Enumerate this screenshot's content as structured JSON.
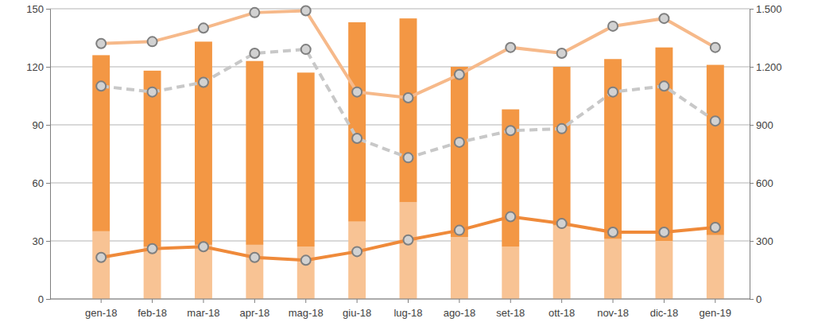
{
  "chart_data": {
    "type": "bar",
    "stacked": true,
    "grid": true,
    "categories": [
      "gen-18",
      "feb-18",
      "mar-18",
      "apr-18",
      "mag-18",
      "giu-18",
      "lug-18",
      "ago-18",
      "set-18",
      "ott-18",
      "nov-18",
      "dic-18",
      "gen-19"
    ],
    "ylim": [
      0,
      150
    ],
    "yticks": [
      0,
      30,
      60,
      90,
      120,
      150
    ],
    "y2lim": [
      0,
      1500
    ],
    "y2ticks": [
      0,
      300,
      600,
      900,
      {
        "value": 1200,
        "label": "1.200"
      },
      {
        "value": 1500,
        "label": "1.500"
      }
    ],
    "series": [
      {
        "type": "bar",
        "color": "#f8c394",
        "values": [
          35,
          27,
          28,
          28,
          27,
          40,
          50,
          32,
          27,
          38,
          31,
          30,
          33
        ]
      },
      {
        "type": "bar",
        "color": "#f39744",
        "values": [
          91,
          91,
          105,
          95,
          90,
          103,
          95,
          88,
          71,
          82,
          93,
          100,
          88
        ]
      },
      {
        "type": "line",
        "axis": "y2",
        "color": "#f6b98a",
        "marker": "circle",
        "line_style": "solid",
        "values": [
          1320,
          1330,
          1400,
          1480,
          1490,
          1070,
          1040,
          1160,
          1300,
          1270,
          1410,
          1450,
          1300
        ]
      },
      {
        "type": "line",
        "axis": "y2",
        "color": "#c8c8c8",
        "marker": "circle",
        "line_style": "dashed",
        "values": [
          1100,
          1070,
          1120,
          1270,
          1290,
          830,
          730,
          810,
          870,
          880,
          1070,
          1100,
          920
        ]
      },
      {
        "type": "line",
        "axis": "y2",
        "color": "#ef8a3a",
        "marker": "circle",
        "line_style": "solid",
        "values": [
          215,
          260,
          270,
          215,
          200,
          245,
          305,
          355,
          425,
          390,
          345,
          345,
          370
        ]
      }
    ]
  }
}
